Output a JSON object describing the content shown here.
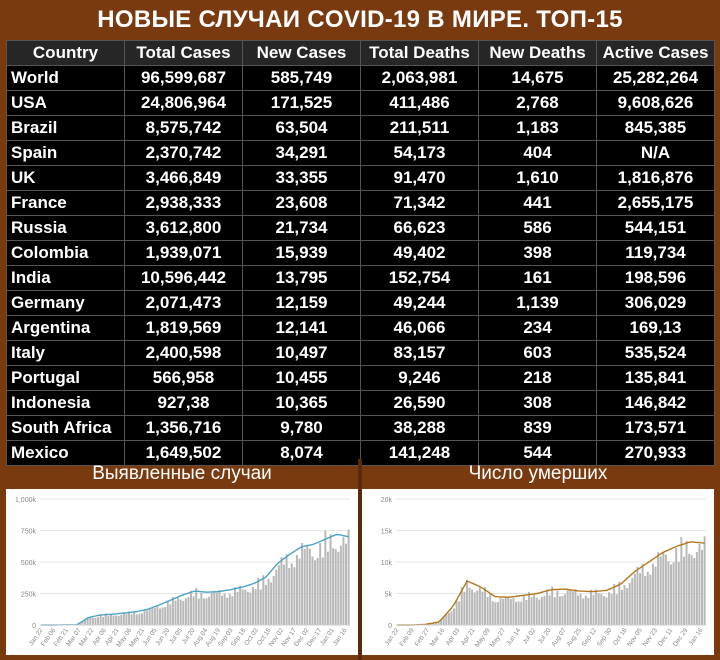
{
  "title": "НОВЫЕ СЛУЧАИ COVID-19 В МИРЕ. ТОП-15",
  "table": {
    "headers": [
      "Country",
      "Total Cases",
      "New Cases",
      "Total Deaths",
      "New Deaths",
      "Active Cases"
    ],
    "rows": [
      [
        "World",
        "96,599,687",
        "585,749",
        "2,063,981",
        "14,675",
        "25,282,264"
      ],
      [
        "USA",
        "24,806,964",
        "171,525",
        "411,486",
        "2,768",
        "9,608,626"
      ],
      [
        "Brazil",
        "8,575,742",
        "63,504",
        "211,511",
        "1,183",
        "845,385"
      ],
      [
        "Spain",
        "2,370,742",
        "34,291",
        "54,173",
        "404",
        "N/A"
      ],
      [
        "UK",
        "3,466,849",
        "33,355",
        "91,470",
        "1,610",
        "1,816,876"
      ],
      [
        "France",
        "2,938,333",
        "23,608",
        "71,342",
        "441",
        "2,655,175"
      ],
      [
        "Russia",
        "3,612,800",
        "21,734",
        "66,623",
        "586",
        "544,151"
      ],
      [
        "Colombia",
        "1,939,071",
        "15,939",
        "49,402",
        "398",
        "119,734"
      ],
      [
        "India",
        "10,596,442",
        "13,795",
        "152,754",
        "161",
        "198,596"
      ],
      [
        "Germany",
        "2,071,473",
        "12,159",
        "49,244",
        "1,139",
        "306,029"
      ],
      [
        "Argentina",
        "1,819,569",
        "12,141",
        "46,066",
        "234",
        "169,13"
      ],
      [
        "Italy",
        "2,400,598",
        "10,497",
        "83,157",
        "603",
        "535,524"
      ],
      [
        "Portugal",
        "566,958",
        "10,455",
        "9,246",
        "218",
        "135,841"
      ],
      [
        "Indonesia",
        "927,38",
        "10,365",
        "26,590",
        "308",
        "146,842"
      ],
      [
        "South Africa",
        "1,356,716",
        "9,780",
        "38,288",
        "839",
        "173,571"
      ],
      [
        "Mexico",
        "1,649,502",
        "8,074",
        "141,248",
        "544",
        "270,933"
      ]
    ]
  },
  "colors": {
    "background": "#7a3a10",
    "header_yellow": "#ffff00",
    "header_red": "#ff7070",
    "bar": "#b8b8b8",
    "cases_line": "#4aa3c8",
    "deaths_line": "#b5771e",
    "axis_text": "#888888"
  },
  "chart_data": [
    {
      "type": "bar",
      "title": "Выявленные случаи",
      "overlay": "moving-average line",
      "ylim": [
        0,
        1000000
      ],
      "yticks": [
        0,
        250000,
        500000,
        750000,
        1000000
      ],
      "ytick_labels": [
        "0",
        "250k",
        "500k",
        "750k",
        "1,000k"
      ],
      "xtick_labels": [
        "Jan 22",
        "Feb 06",
        "Feb 21",
        "Mar 07",
        "Mar 22",
        "Apr 06",
        "Apr 21",
        "May 06",
        "May 21",
        "Jun 05",
        "Jun 20",
        "Jul 05",
        "Jul 20",
        "Aug 04",
        "Aug 19",
        "Sep 03",
        "Sep 18",
        "Oct 03",
        "Oct 18",
        "Nov 02",
        "Nov 17",
        "Dec 02",
        "Dec 17",
        "Jan 01",
        "Jan 16"
      ],
      "values": [
        0,
        0,
        2000,
        1000,
        60000,
        80000,
        85000,
        95000,
        105000,
        125000,
        160000,
        200000,
        240000,
        270000,
        260000,
        265000,
        280000,
        300000,
        330000,
        380000,
        490000,
        560000,
        620000,
        640000,
        680000,
        720000,
        700000
      ]
    },
    {
      "type": "bar",
      "title": "Число умерших",
      "overlay": "moving-average line",
      "ylim": [
        0,
        20000
      ],
      "yticks": [
        0,
        5000,
        10000,
        15000,
        20000
      ],
      "ytick_labels": [
        "0",
        "5k",
        "10k",
        "15k",
        "20k"
      ],
      "xtick_labels": [
        "Jan 22",
        "Feb 09",
        "Feb 27",
        "Mar 16",
        "Apr 03",
        "Apr 21",
        "May 09",
        "May 27",
        "Jun 14",
        "Jul 02",
        "Jul 20",
        "Aug 07",
        "Aug 25",
        "Sep 12",
        "Sep 30",
        "Oct 18",
        "Nov 05",
        "Nov 23",
        "Dec 11",
        "Dec 29",
        "Jan 16"
      ],
      "values": [
        0,
        0,
        100,
        500,
        3000,
        7000,
        6000,
        4500,
        4400,
        4700,
        5000,
        5600,
        5700,
        5400,
        5300,
        5500,
        6500,
        8500,
        10000,
        11500,
        12500,
        13200,
        13000
      ]
    }
  ],
  "panels": {
    "left_title": "Выявленные случаи",
    "right_title": "Число умерших"
  }
}
